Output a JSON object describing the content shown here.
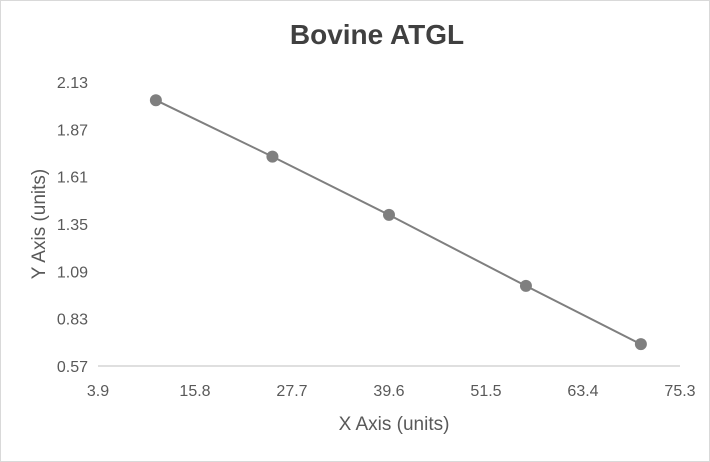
{
  "chart_data": {
    "type": "line",
    "title": "Bovine ATGL",
    "xlabel": "X Axis (units)",
    "ylabel": "Y Axis (units)",
    "xlim": [
      3.9,
      75.3
    ],
    "ylim": [
      0.57,
      2.13
    ],
    "x_ticks": [
      "3.9",
      "15.8",
      "27.7",
      "39.6",
      "51.5",
      "63.4",
      "75.3"
    ],
    "y_ticks": [
      "0.57",
      "0.83",
      "1.09",
      "1.35",
      "1.61",
      "1.87",
      "2.13"
    ],
    "grid": false,
    "legend": "none",
    "series": [
      {
        "x": [
          11.0,
          25.3,
          39.6,
          56.4,
          70.5
        ],
        "y": [
          2.03,
          1.72,
          1.4,
          1.01,
          0.69
        ],
        "color": "#7f7f7f",
        "marker": "circle"
      }
    ]
  }
}
